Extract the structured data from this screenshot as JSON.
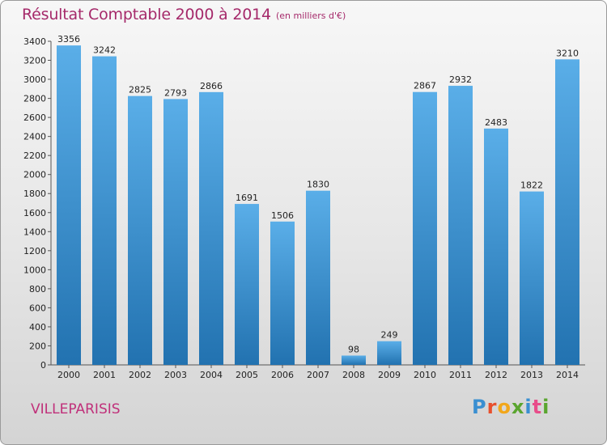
{
  "title": "Résultat Comptable 2000 à 2014",
  "unit": "(en milliers d'€)",
  "place": "VILLEPARISIS",
  "logo": {
    "text": "Proxiti",
    "colors": [
      "#3a8fd1",
      "#e8502d",
      "#f2a71b",
      "#5aa52f",
      "#3a8fd1",
      "#e84d8a",
      "#5aa52f"
    ]
  },
  "colors": {
    "title": "#a5296a",
    "bar_light": "#5aaee8",
    "bar_dark": "#2272b0"
  },
  "chart_data": {
    "type": "bar",
    "categories": [
      "2000",
      "2001",
      "2002",
      "2003",
      "2004",
      "2005",
      "2006",
      "2007",
      "2008",
      "2009",
      "2010",
      "2011",
      "2012",
      "2013",
      "2014"
    ],
    "values": [
      3356,
      3242,
      2825,
      2793,
      2866,
      1691,
      1506,
      1830,
      98,
      249,
      2867,
      2932,
      2483,
      1822,
      3210
    ],
    "title": "Résultat Comptable 2000 à 2014",
    "ylim": [
      0,
      3400
    ],
    "yticks": [
      0,
      200,
      400,
      600,
      800,
      1000,
      1200,
      1400,
      1600,
      1800,
      2000,
      2200,
      2400,
      2600,
      2800,
      3000,
      3200,
      3400
    ],
    "grid": false,
    "data_labels": true
  }
}
